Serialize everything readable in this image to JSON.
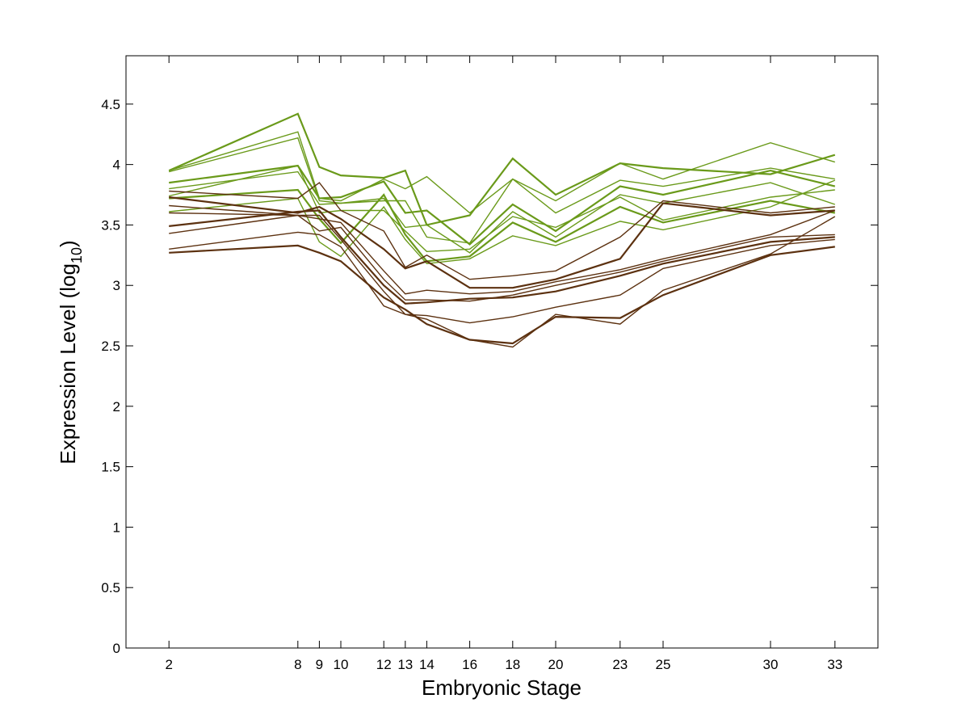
{
  "chart_data": {
    "type": "line",
    "title": "",
    "xlabel": "Embryonic Stage",
    "ylabel_main": "Expression Level (log",
    "ylabel_sub": "10",
    "ylabel_close": ")",
    "x": [
      2,
      8,
      9,
      10,
      12,
      13,
      14,
      16,
      18,
      20,
      23,
      25,
      30,
      33
    ],
    "x_ticks": [
      "2",
      "8",
      "9",
      "10",
      "12",
      "13",
      "14",
      "16",
      "18",
      "20",
      "23",
      "25",
      "30",
      "33"
    ],
    "xlim": [
      0,
      35
    ],
    "ylim": [
      0,
      4.9
    ],
    "y_ticks": [
      "0",
      "0.5",
      "1",
      "1.5",
      "2",
      "2.5",
      "3",
      "3.5",
      "4",
      "4.5"
    ],
    "grid": false,
    "legend": "none",
    "colors": {
      "green": "#6a9a1a",
      "brown": "#5c3110"
    },
    "series": [
      {
        "group": "green",
        "values": [
          3.95,
          4.42,
          3.98,
          3.91,
          3.89,
          3.95,
          3.5,
          3.58,
          4.05,
          3.75,
          4.01,
          3.97,
          3.92,
          4.08
        ]
      },
      {
        "group": "green",
        "values": [
          3.95,
          4.27,
          3.72,
          3.7,
          3.88,
          3.8,
          3.9,
          3.6,
          3.88,
          3.7,
          4.01,
          3.88,
          4.18,
          4.02
        ]
      },
      {
        "group": "green",
        "values": [
          3.94,
          4.22,
          3.7,
          3.68,
          3.7,
          3.7,
          3.4,
          3.35,
          3.88,
          3.6,
          3.87,
          3.82,
          3.97,
          3.88
        ]
      },
      {
        "group": "green",
        "values": [
          3.85,
          3.99,
          3.72,
          3.73,
          3.86,
          3.6,
          3.62,
          3.34,
          3.67,
          3.45,
          3.82,
          3.75,
          3.95,
          3.82
        ]
      },
      {
        "group": "green",
        "values": [
          3.8,
          3.94,
          3.67,
          3.68,
          3.72,
          3.48,
          3.5,
          3.27,
          3.61,
          3.4,
          3.75,
          3.68,
          3.85,
          3.67
        ]
      },
      {
        "group": "green",
        "values": [
          3.74,
          3.99,
          3.6,
          3.62,
          3.62,
          3.45,
          3.28,
          3.3,
          3.57,
          3.48,
          3.73,
          3.54,
          3.73,
          3.79
        ]
      },
      {
        "group": "green",
        "values": [
          3.72,
          3.79,
          3.55,
          3.35,
          3.75,
          3.42,
          3.2,
          3.24,
          3.52,
          3.36,
          3.65,
          3.52,
          3.7,
          3.6
        ]
      },
      {
        "group": "green",
        "values": [
          3.61,
          3.72,
          3.36,
          3.24,
          3.65,
          3.38,
          3.18,
          3.22,
          3.41,
          3.33,
          3.53,
          3.46,
          3.65,
          3.87
        ]
      },
      {
        "group": "brown",
        "values": [
          3.78,
          3.72,
          3.85,
          3.62,
          3.45,
          3.15,
          3.25,
          3.05,
          3.08,
          3.12,
          3.4,
          3.7,
          3.6,
          3.65
        ]
      },
      {
        "group": "brown",
        "values": [
          3.73,
          3.6,
          3.65,
          3.55,
          3.3,
          3.14,
          3.2,
          2.98,
          2.98,
          3.05,
          3.22,
          3.68,
          3.58,
          3.62
        ]
      },
      {
        "group": "brown",
        "values": [
          3.66,
          3.58,
          3.55,
          3.52,
          3.12,
          2.93,
          2.96,
          2.93,
          2.95,
          3.03,
          3.13,
          3.22,
          3.42,
          3.62
        ]
      },
      {
        "group": "brown",
        "values": [
          3.6,
          3.58,
          3.45,
          3.48,
          3.05,
          2.88,
          2.88,
          2.87,
          2.92,
          3.0,
          3.11,
          3.2,
          3.4,
          3.42
        ]
      },
      {
        "group": "brown",
        "values": [
          3.49,
          3.61,
          3.62,
          3.4,
          3.0,
          2.85,
          2.86,
          2.89,
          2.9,
          2.95,
          3.08,
          3.18,
          3.36,
          3.4
        ]
      },
      {
        "group": "brown",
        "values": [
          3.43,
          3.58,
          3.58,
          3.38,
          2.95,
          2.76,
          2.75,
          2.69,
          2.74,
          2.82,
          2.92,
          3.14,
          3.33,
          3.38
        ]
      },
      {
        "group": "brown",
        "values": [
          3.3,
          3.44,
          3.42,
          3.32,
          2.83,
          2.76,
          2.72,
          2.55,
          2.49,
          2.76,
          2.68,
          2.96,
          3.26,
          3.57
        ]
      },
      {
        "group": "brown",
        "values": [
          3.27,
          3.33,
          3.27,
          3.2,
          2.9,
          2.8,
          2.68,
          2.55,
          2.52,
          2.74,
          2.73,
          2.92,
          3.25,
          3.32
        ]
      }
    ]
  }
}
